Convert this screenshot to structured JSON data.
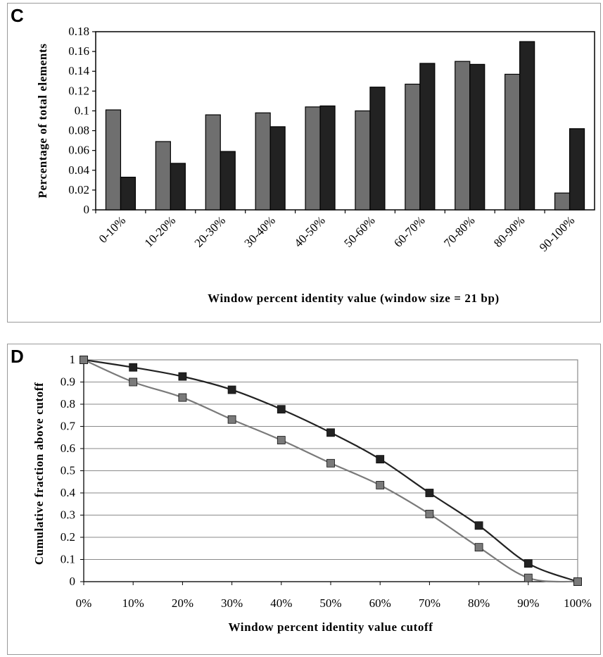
{
  "chart_data": [
    {
      "panel": "C",
      "type": "bar",
      "categories": [
        "0-10%",
        "10-20%",
        "20-30%",
        "30-40%",
        "40-50%",
        "50-60%",
        "60-70%",
        "70-80%",
        "80-90%",
        "90-100%"
      ],
      "series": [
        {
          "color": "#6f6f6f",
          "values": [
            0.101,
            0.069,
            0.096,
            0.098,
            0.104,
            0.1,
            0.127,
            0.15,
            0.137,
            0.017
          ]
        },
        {
          "color": "#222222",
          "values": [
            0.033,
            0.047,
            0.059,
            0.084,
            0.105,
            0.124,
            0.148,
            0.147,
            0.17,
            0.082
          ]
        }
      ],
      "xlabel": "Window percent identity value (window size = 21 bp)",
      "ylabel": "Percentage of total elements",
      "ylim": [
        0,
        0.18
      ],
      "yticks": [
        "0",
        "0.02",
        "0.04",
        "0.06",
        "0.08",
        "0.1",
        "0.12",
        "0.14",
        "0.16",
        "0.18"
      ],
      "grid": false,
      "legend": "none"
    },
    {
      "panel": "D",
      "type": "line",
      "x": [
        "0%",
        "10%",
        "20%",
        "30%",
        "40%",
        "50%",
        "60%",
        "70%",
        "80%",
        "90%",
        "100%"
      ],
      "series": [
        {
          "color": "#222222",
          "values": [
            1.0,
            0.966,
            0.925,
            0.865,
            0.777,
            0.672,
            0.552,
            0.4,
            0.253,
            0.082,
            0.0
          ]
        },
        {
          "color": "#7a7a7a",
          "values": [
            1.0,
            0.9,
            0.83,
            0.731,
            0.638,
            0.534,
            0.435,
            0.305,
            0.155,
            0.017,
            0.0
          ]
        }
      ],
      "xlabel": "Window percent identity value cutoff",
      "ylabel": "Cumulative fraction above cutoff",
      "ylim": [
        0,
        1
      ],
      "yticks": [
        "0",
        "0.1",
        "0.2",
        "0.3",
        "0.4",
        "0.5",
        "0.6",
        "0.7",
        "0.8",
        "0.9",
        "1"
      ],
      "grid": true,
      "legend": "none"
    }
  ]
}
